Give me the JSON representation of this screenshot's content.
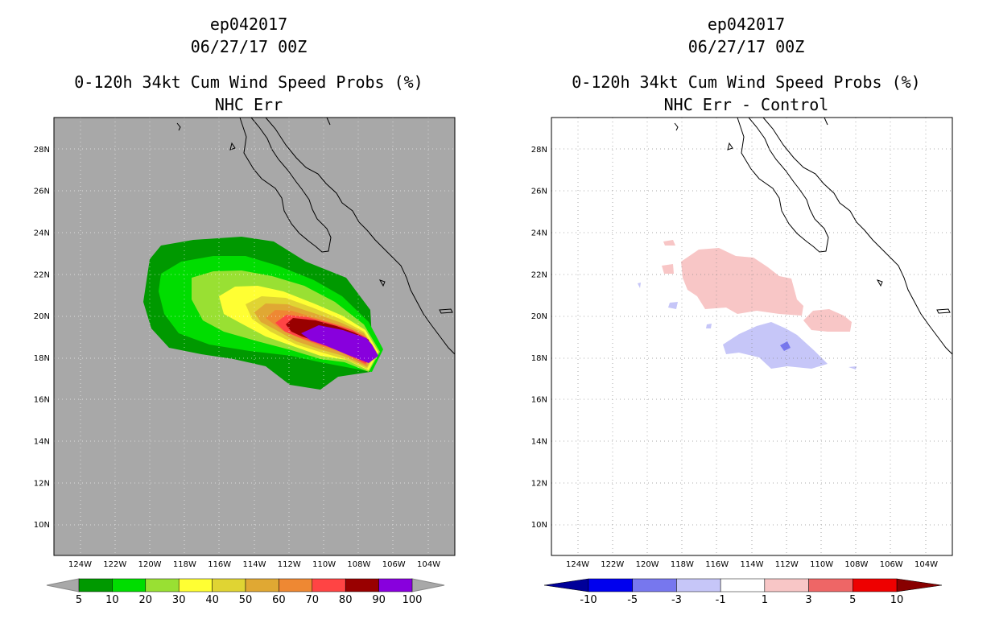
{
  "left_panel": {
    "title_line1": "ep042017",
    "title_line2": "06/27/17 00Z",
    "title_line3": "0-120h 34kt Cum Wind Speed Probs (%)",
    "title_line4": "NHC Err",
    "background_color": "#a8a8a8",
    "colorbar": {
      "colors": [
        "#009900",
        "#00dd00",
        "#99e033",
        "#ffff33",
        "#e0d433",
        "#e0a833",
        "#ee8833",
        "#ff4444",
        "#990000",
        "#8800dd"
      ],
      "labels": [
        "5",
        "10",
        "20",
        "30",
        "40",
        "50",
        "60",
        "70",
        "80",
        "90",
        "100"
      ]
    }
  },
  "right_panel": {
    "title_line1": "ep042017",
    "title_line2": "06/27/17 00Z",
    "title_line3": "0-120h 34kt Cum Wind Speed Probs (%)",
    "title_line4": "NHC Err - Control",
    "background_color": "#ffffff",
    "colorbar": {
      "colors": [
        "#0000ee",
        "#7777ee",
        "#c6c6f8",
        "#ffffff",
        "#f8c6c6",
        "#ee6666",
        "#ee0000"
      ],
      "left_arrow_color": "#000099",
      "right_arrow_color": "#880000",
      "labels": [
        "-10",
        "-5",
        "-3",
        "-1",
        "1",
        "3",
        "5",
        "10"
      ]
    }
  },
  "map": {
    "lon_range": [
      -125.5,
      -102.5
    ],
    "lat_range": [
      8.5,
      29.5
    ],
    "lon_ticks": [
      "124W",
      "122W",
      "120W",
      "118W",
      "116W",
      "114W",
      "112W",
      "110W",
      "108W",
      "106W",
      "104W"
    ],
    "lat_ticks": [
      "28N",
      "26N",
      "24N",
      "22N",
      "20N",
      "18N",
      "16N",
      "14N",
      "12N",
      "10N"
    ]
  }
}
